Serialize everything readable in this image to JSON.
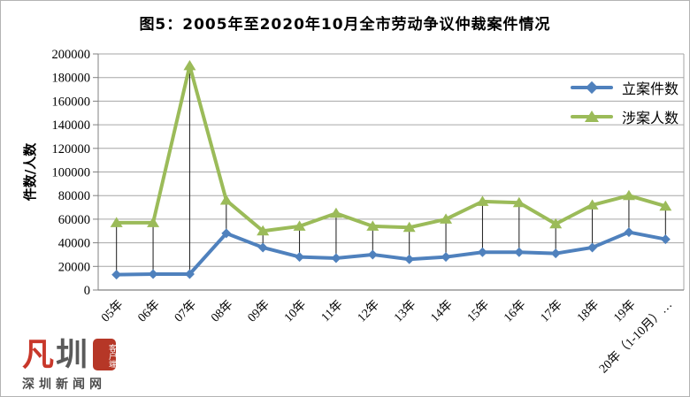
{
  "title": "图5：2005年至2020年10月全市劳动争议仲裁案件情况",
  "chart_data": {
    "type": "line",
    "title": "图5：2005年至2020年10月全市劳动争议仲裁案件情况",
    "categories": [
      "05年",
      "06年",
      "07年",
      "08年",
      "09年",
      "10年",
      "11年",
      "12年",
      "13年",
      "14年",
      "15年",
      "16年",
      "17年",
      "18年",
      "19年",
      "20年（1-10月）…"
    ],
    "series": [
      {
        "key": "filed-cases",
        "name": "立案件数",
        "color": "#4f81bd",
        "marker": "diamond",
        "values": [
          13000,
          13500,
          13500,
          48000,
          36000,
          28000,
          27000,
          30000,
          26000,
          28000,
          32000,
          32000,
          31000,
          36000,
          49000,
          43000
        ]
      },
      {
        "key": "people-involved",
        "name": "涉案人数",
        "color": "#9bbb59",
        "marker": "triangle",
        "values": [
          57000,
          57000,
          190000,
          76000,
          50000,
          54000,
          65000,
          54000,
          53000,
          60000,
          75000,
          74000,
          56000,
          72000,
          80000,
          71000
        ]
      }
    ],
    "ylabel": "件数/人数",
    "xlabel": "",
    "ylim": [
      0,
      200000
    ],
    "ytick_step": 20000,
    "grid": true,
    "drop_lines": true,
    "legend_position": "top-right",
    "axis_color": "#808080",
    "grid_color": "#a6a6a6",
    "droplines_color": "#1a1a1a"
  },
  "logo": {
    "glyph": "凡",
    "glyph_color": "#c8372a",
    "name_char": "圳",
    "name_color": "#5a5a5a",
    "badge_text": "客户端",
    "badge_color": "#b63727",
    "site_name": "深圳新闻网",
    "site_color": "#4d4d4d"
  }
}
